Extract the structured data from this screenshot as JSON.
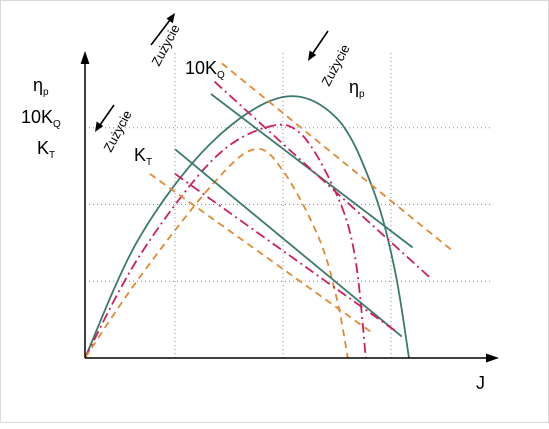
{
  "chart_data": {
    "type": "line",
    "title": "",
    "xlabel": "J",
    "ylabels": [
      {
        "base": "η",
        "sub": "p"
      },
      {
        "base": "10K",
        "sub": "Q"
      },
      {
        "base": "K",
        "sub": "T"
      }
    ],
    "curve_labels": {
      "q": {
        "base": "10K",
        "sub": "Q"
      },
      "eta": {
        "base": "η",
        "sub": "p"
      },
      "kt": {
        "base": "K",
        "sub": "T"
      }
    },
    "wear_label": "Zużycie",
    "grid": true,
    "grid_style": "dotted",
    "xlim": [
      0,
      11
    ],
    "ylim": [
      0,
      10
    ],
    "x_gridlines": [
      2.5,
      5.5,
      8.5
    ],
    "y_gridlines": [
      2.5,
      5.0,
      7.5
    ],
    "colors": {
      "teal": "#3b7a6e",
      "magenta": "#cc1f5e",
      "orange": "#e08a33",
      "axis": "#000000",
      "grid": "#8a8a8a"
    },
    "series": [
      {
        "group": "eta",
        "color": "teal",
        "dash": "solid",
        "points": [
          [
            0,
            0
          ],
          [
            1.5,
            3.9
          ],
          [
            3.5,
            7.0
          ],
          [
            5.5,
            8.5
          ],
          [
            7.0,
            7.8
          ],
          [
            8.0,
            5.5
          ],
          [
            8.6,
            2.9
          ],
          [
            9.0,
            0
          ]
        ]
      },
      {
        "group": "eta",
        "color": "magenta",
        "dash": "dashdot",
        "points": [
          [
            0,
            0
          ],
          [
            1.5,
            3.3
          ],
          [
            3.5,
            6.4
          ],
          [
            5.0,
            7.5
          ],
          [
            6.0,
            7.3
          ],
          [
            7.0,
            5.3
          ],
          [
            7.5,
            3.3
          ],
          [
            7.8,
            0
          ]
        ]
      },
      {
        "group": "eta",
        "color": "orange",
        "dash": "dashed",
        "points": [
          [
            0,
            0
          ],
          [
            1.5,
            2.6
          ],
          [
            3.5,
            5.6
          ],
          [
            4.7,
            6.8
          ],
          [
            5.5,
            6.1
          ],
          [
            6.5,
            3.9
          ],
          [
            7.0,
            1.9
          ],
          [
            7.3,
            0
          ]
        ]
      },
      {
        "group": "q",
        "color": "teal",
        "dash": "solid",
        "points": [
          [
            3.5,
            8.6
          ],
          [
            9.1,
            3.6
          ]
        ]
      },
      {
        "group": "q",
        "color": "magenta",
        "dash": "dashdot",
        "points": [
          [
            3.6,
            9.0
          ],
          [
            9.6,
            2.6
          ]
        ]
      },
      {
        "group": "q",
        "color": "orange",
        "dash": "dashed",
        "points": [
          [
            3.8,
            9.6
          ],
          [
            10.2,
            3.5
          ]
        ]
      },
      {
        "group": "kt",
        "color": "teal",
        "dash": "solid",
        "points": [
          [
            2.5,
            6.8
          ],
          [
            8.8,
            0.7
          ]
        ]
      },
      {
        "group": "kt",
        "color": "magenta",
        "dash": "dashdot",
        "points": [
          [
            2.5,
            6.0
          ],
          [
            8.6,
            0.9
          ]
        ]
      },
      {
        "group": "kt",
        "color": "orange",
        "dash": "dashed",
        "points": [
          [
            1.8,
            6.0
          ],
          [
            8.0,
            0.8
          ]
        ]
      }
    ]
  }
}
